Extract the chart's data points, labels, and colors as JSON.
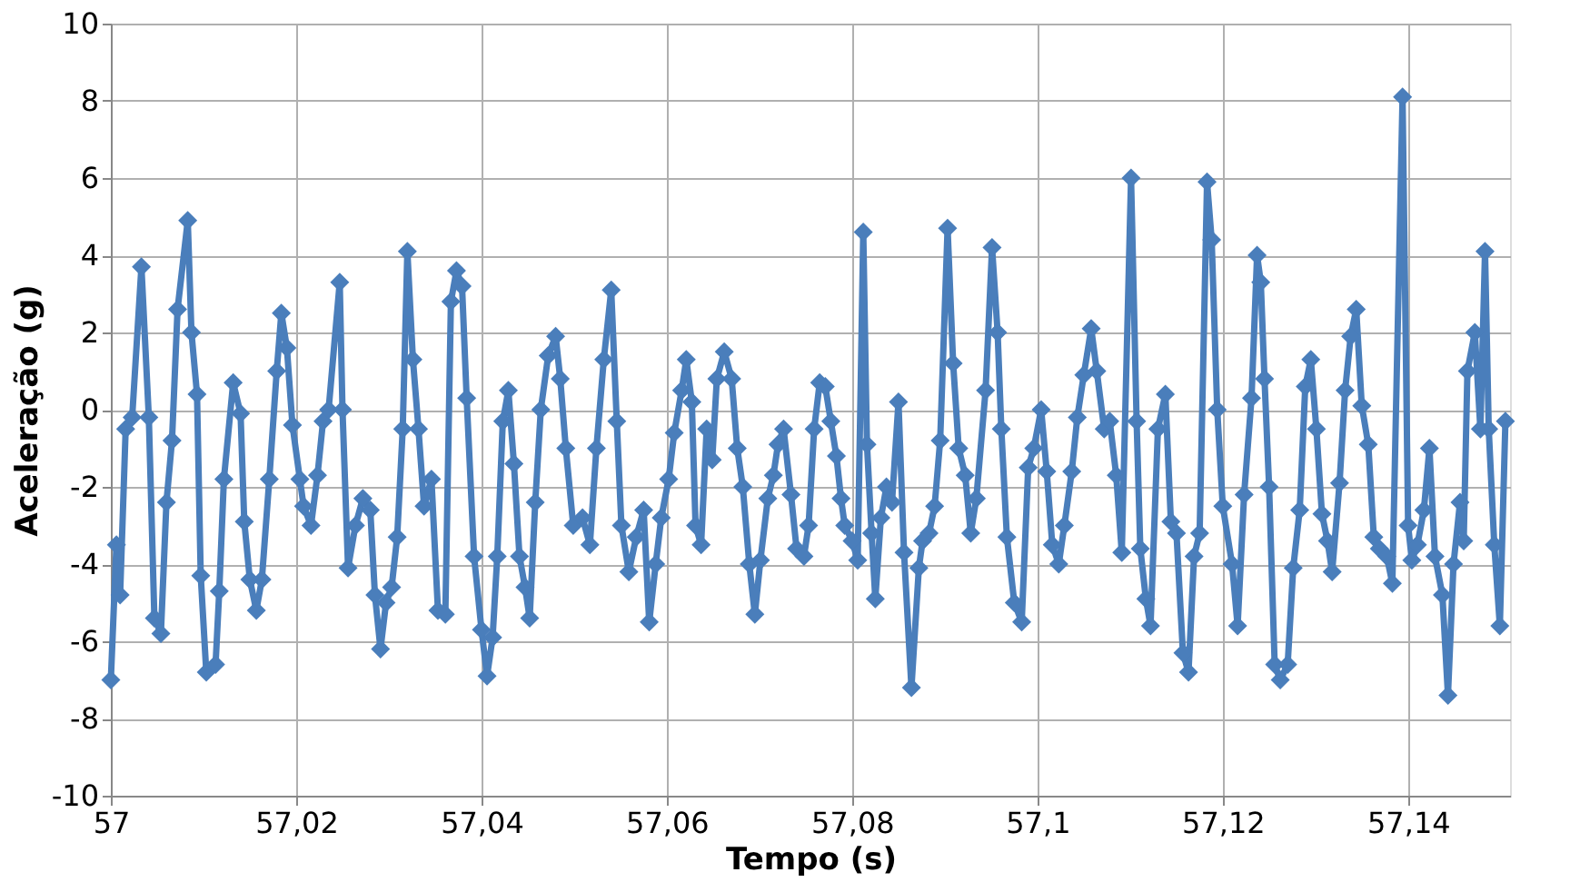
{
  "chart_data": {
    "type": "line",
    "xlabel": "Tempo (s)",
    "ylabel": "Aceleração  (g)",
    "xlim": [
      57,
      57.151
    ],
    "ylim": [
      -10,
      10
    ],
    "xticks": [
      57,
      {
        "value": 57.02,
        "label": "57,02"
      },
      {
        "value": 57.04,
        "label": "57,04"
      },
      {
        "value": 57.06,
        "label": "57,06"
      },
      {
        "value": 57.08,
        "label": "57,08"
      },
      {
        "value": 57.1,
        "label": "57,1"
      },
      {
        "value": 57.12,
        "label": "57,12"
      },
      {
        "value": 57.14,
        "label": "57,14"
      }
    ],
    "yticks": [
      -10,
      -8,
      -6,
      -4,
      -2,
      0,
      2,
      4,
      6,
      8,
      10
    ],
    "grid": true,
    "marker": "diamond",
    "line_style": "solid",
    "series": [
      {
        "color": "#4a7ebb",
        "x": [
          57.0,
          57.0006,
          57.001,
          57.0016,
          57.0023,
          57.0033,
          57.0041,
          57.0047,
          57.0054,
          57.006,
          57.0066,
          57.0072,
          57.0083,
          57.0087,
          57.0093,
          57.0097,
          57.0103,
          57.0113,
          57.0117,
          57.0122,
          57.0132,
          57.014,
          57.0144,
          57.015,
          57.0157,
          57.0163,
          57.0171,
          57.0179,
          57.0184,
          57.019,
          57.0196,
          57.0204,
          57.0208,
          57.0216,
          57.0223,
          57.0229,
          57.0235,
          57.0247,
          57.025,
          57.0256,
          57.0264,
          57.0272,
          57.028,
          57.0285,
          57.0291,
          57.0297,
          57.0303,
          57.0309,
          57.0315,
          57.032,
          57.0326,
          57.0332,
          57.0338,
          57.0346,
          57.0353,
          57.0361,
          57.0367,
          57.0373,
          57.0379,
          57.0384,
          57.0392,
          57.04,
          57.0406,
          57.0412,
          57.0417,
          57.0423,
          57.0429,
          57.0435,
          57.0441,
          57.0447,
          57.0452,
          57.0458,
          57.0464,
          57.0472,
          57.048,
          57.0485,
          57.0491,
          57.0499,
          57.0509,
          57.0517,
          57.0524,
          57.0532,
          57.054,
          57.0546,
          57.0551,
          57.0559,
          57.0567,
          57.0575,
          57.0581,
          57.0588,
          57.0594,
          57.0602,
          57.0608,
          57.0616,
          57.0621,
          57.0627,
          57.0631,
          57.0637,
          57.0643,
          57.0649,
          57.0654,
          57.0662,
          57.067,
          57.0676,
          57.0682,
          57.0689,
          57.0695,
          57.0701,
          57.0709,
          57.0715,
          57.072,
          57.0726,
          57.0734,
          57.074,
          57.0748,
          57.0753,
          57.0759,
          57.0765,
          57.0771,
          57.0777,
          57.0783,
          57.0788,
          57.0792,
          57.08,
          57.0806,
          57.0812,
          57.0816,
          57.0821,
          57.0825,
          57.0831,
          57.0837,
          57.0843,
          57.085,
          57.0856,
          57.0864,
          57.0872,
          57.0876,
          57.0883,
          57.0889,
          57.0895,
          57.0903,
          57.0909,
          57.0915,
          57.0922,
          57.0928,
          57.0934,
          57.0944,
          57.0951,
          57.0957,
          57.0961,
          57.0967,
          57.0975,
          57.0983,
          57.099,
          57.0996,
          57.1004,
          57.101,
          57.1016,
          57.1023,
          57.1029,
          57.1037,
          57.1043,
          57.105,
          57.1058,
          57.1064,
          57.1072,
          57.1078,
          57.1085,
          57.1091,
          57.1101,
          57.1107,
          57.1111,
          57.1117,
          57.1122,
          57.113,
          57.1138,
          57.1144,
          57.115,
          57.1157,
          57.1163,
          57.1169,
          57.1175,
          57.1183,
          57.1188,
          57.1194,
          57.12,
          57.121,
          57.1216,
          57.1223,
          57.1231,
          57.1237,
          57.1241,
          57.1245,
          57.125,
          57.1256,
          57.1262,
          57.127,
          57.1276,
          57.1283,
          57.1289,
          57.1295,
          57.1301,
          57.1307,
          57.1313,
          57.1318,
          57.1326,
          57.1332,
          57.1338,
          57.1344,
          57.135,
          57.1357,
          57.1363,
          57.1369,
          57.1377,
          57.1383,
          57.1394,
          57.14,
          57.1404,
          57.141,
          57.1417,
          57.1423,
          57.1429,
          57.1437,
          57.1443,
          57.1449,
          57.1456,
          57.146,
          57.1464,
          57.1472,
          57.1478,
          57.1483,
          57.1487,
          57.1493,
          57.1499,
          57.1505
        ],
        "values": [
          -7,
          -3.5,
          -4.8,
          -0.5,
          -0.2,
          3.7,
          -0.2,
          -5.4,
          -5.8,
          -2.4,
          -0.8,
          2.6,
          4.9,
          2.0,
          0.4,
          -4.3,
          -6.8,
          -6.6,
          -4.7,
          -1.8,
          0.7,
          -0.1,
          -2.9,
          -4.4,
          -5.2,
          -4.4,
          -1.8,
          1.0,
          2.5,
          1.6,
          -0.4,
          -1.8,
          -2.5,
          -3.0,
          -1.7,
          -0.3,
          0.0,
          3.3,
          0.0,
          -4.1,
          -3.0,
          -2.3,
          -2.6,
          -4.8,
          -6.2,
          -5.0,
          -4.6,
          -3.3,
          -0.5,
          4.1,
          1.3,
          -0.5,
          -2.5,
          -1.8,
          -5.2,
          -5.3,
          2.8,
          3.6,
          3.2,
          0.3,
          -3.8,
          -5.7,
          -6.9,
          -5.9,
          -3.8,
          -0.3,
          0.5,
          -1.4,
          -3.8,
          -4.6,
          -5.4,
          -2.4,
          0.0,
          1.4,
          1.9,
          0.8,
          -1.0,
          -3.0,
          -2.8,
          -3.5,
          -1.0,
          1.3,
          3.1,
          -0.3,
          -3.0,
          -4.2,
          -3.3,
          -2.6,
          -5.5,
          -4.0,
          -2.8,
          -1.8,
          -0.6,
          0.5,
          1.3,
          0.2,
          -3.0,
          -3.5,
          -0.5,
          -1.3,
          0.8,
          1.5,
          0.8,
          -1.0,
          -2.0,
          -4.0,
          -5.3,
          -3.9,
          -2.3,
          -1.7,
          -0.9,
          -0.5,
          -2.2,
          -3.6,
          -3.8,
          -3.0,
          -0.5,
          0.7,
          0.6,
          -0.3,
          -1.2,
          -2.3,
          -3.0,
          -3.4,
          -3.9,
          4.6,
          -0.9,
          -3.2,
          -4.9,
          -2.8,
          -2.0,
          -2.4,
          0.2,
          -3.7,
          -7.2,
          -4.1,
          -3.4,
          -3.2,
          -2.5,
          -0.8,
          4.7,
          1.2,
          -1.0,
          -1.7,
          -3.2,
          -2.3,
          0.5,
          4.2,
          2.0,
          -0.5,
          -3.3,
          -5.0,
          -5.5,
          -1.5,
          -1.0,
          0.0,
          -1.6,
          -3.5,
          -4.0,
          -3.0,
          -1.6,
          -0.2,
          0.9,
          2.1,
          1.0,
          -0.5,
          -0.3,
          -1.7,
          -3.7,
          6.0,
          -0.3,
          -3.6,
          -4.9,
          -5.6,
          -0.5,
          0.4,
          -2.9,
          -3.2,
          -6.3,
          -6.8,
          -3.8,
          -3.2,
          5.9,
          4.4,
          0.0,
          -2.5,
          -4.0,
          -5.6,
          -2.2,
          0.3,
          4.0,
          3.3,
          0.8,
          -2.0,
          -6.6,
          -7.0,
          -6.6,
          -4.1,
          -2.6,
          0.6,
          1.3,
          -0.5,
          -2.7,
          -3.4,
          -4.2,
          -1.9,
          0.5,
          1.9,
          2.6,
          0.1,
          -0.9,
          -3.3,
          -3.6,
          -3.8,
          -4.5,
          8.1,
          -3.0,
          -3.9,
          -3.5,
          -2.6,
          -1.0,
          -3.8,
          -4.8,
          -7.4,
          -4.0,
          -2.4,
          -3.4,
          1.0,
          2.0,
          -0.5,
          4.1,
          -0.5,
          -3.5,
          -5.6,
          -0.3
        ]
      }
    ]
  }
}
